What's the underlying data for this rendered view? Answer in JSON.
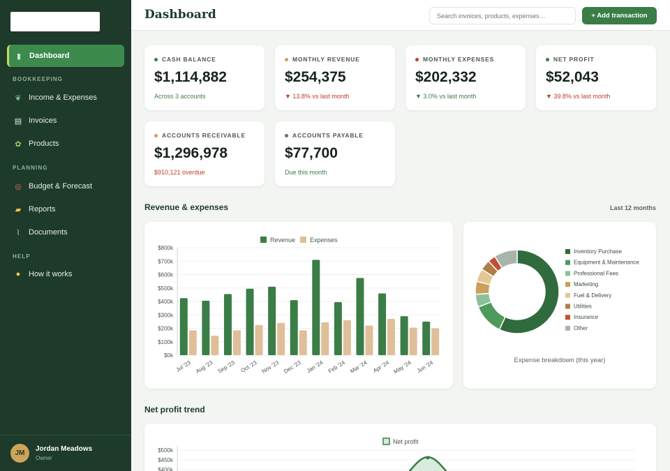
{
  "sidebar": {
    "nav": [
      {
        "label": "Dashboard",
        "icon": "chart-icon",
        "glyph": "▮"
      },
      {
        "label": "Income & Expenses",
        "icon": "leaf-icon",
        "glyph": "❦"
      },
      {
        "label": "Invoices",
        "icon": "receipt-icon",
        "glyph": "▤"
      },
      {
        "label": "Products",
        "icon": "sprout-icon",
        "glyph": "✿"
      },
      {
        "label": "Budget & Forecast",
        "icon": "target-icon",
        "glyph": "◎"
      },
      {
        "label": "Reports",
        "icon": "folder-icon",
        "glyph": "▰"
      },
      {
        "label": "Documents",
        "icon": "paperclip-icon",
        "glyph": "⌇"
      },
      {
        "label": "How it works",
        "icon": "lightbulb-icon",
        "glyph": "●"
      }
    ],
    "sections": {
      "bookkeeping": "BOOKKEEPING",
      "planning": "PLANNING",
      "help": "HELP"
    },
    "user": {
      "initials": "JM",
      "name": "Jordan Meadows",
      "role": "Owner"
    }
  },
  "header": {
    "title": "Dashboard",
    "search_placeholder": "Search invoices, products, expenses…",
    "add_label": "+ Add transaction"
  },
  "kpis": [
    {
      "label": "CASH BALANCE",
      "value": "$1,114,882",
      "sub": "Across 3 accounts",
      "dot": "#3a7d47",
      "trend": "pos"
    },
    {
      "label": "MONTHLY REVENUE",
      "value": "$254,375",
      "sub": "▼ 13.8% vs last month",
      "dot": "#c9a05a",
      "trend": "neg"
    },
    {
      "label": "MONTHLY EXPENSES",
      "value": "$202,332",
      "sub": "▼ 3.0% vs last month",
      "dot": "#c0392b",
      "trend": "pos"
    },
    {
      "label": "NET PROFIT",
      "value": "$52,043",
      "sub": "▼ 39.8% vs last month",
      "dot": "#3a7d47",
      "trend": "neg"
    },
    {
      "label": "ACCOUNTS RECEIVABLE",
      "value": "$1,296,978",
      "sub": "$910,121 overdue",
      "dot": "#c9a05a",
      "trend": "neg"
    },
    {
      "label": "ACCOUNTS PAYABLE",
      "value": "$77,700",
      "sub": "Due this month",
      "dot": "#6b6b6b",
      "trend": "pos"
    }
  ],
  "sections": {
    "revenue_title": "Revenue & expenses",
    "revenue_range": "Last 12 months",
    "net_title": "Net profit trend"
  },
  "chart_data": [
    {
      "type": "bar",
      "categories": [
        "Jul '23",
        "Aug '23",
        "Sep '23",
        "Oct '23",
        "Nov '23",
        "Dec '23",
        "Jan '24",
        "Feb '24",
        "Mar '24",
        "Apr '24",
        "May '24",
        "Jun '24"
      ],
      "series": [
        {
          "name": "Revenue",
          "color": "#3a7d47",
          "values": [
            425000,
            405000,
            455000,
            495000,
            510000,
            410000,
            710000,
            395000,
            575000,
            460000,
            290000,
            250000
          ]
        },
        {
          "name": "Expenses",
          "color": "#dfbf99",
          "values": [
            185000,
            145000,
            185000,
            225000,
            240000,
            185000,
            245000,
            260000,
            220000,
            270000,
            205000,
            200000
          ]
        }
      ],
      "yticks": [
        "$0k",
        "$100k",
        "$200k",
        "$300k",
        "$400k",
        "$500k",
        "$600k",
        "$700k",
        "$800k"
      ],
      "ylim": [
        0,
        800000
      ]
    },
    {
      "type": "pie",
      "caption": "Expense breakdown (this year)",
      "slices": [
        {
          "name": "Inventory Purchase",
          "value": 57,
          "color": "#2f6b3c"
        },
        {
          "name": "Equipment & Maintenance",
          "value": 12,
          "color": "#4e9a5c"
        },
        {
          "name": "Professional Fees",
          "value": 5,
          "color": "#8cc09a"
        },
        {
          "name": "Marketing",
          "value": 5,
          "color": "#c9a05a"
        },
        {
          "name": "Fuel & Delivery",
          "value": 5,
          "color": "#e3c896"
        },
        {
          "name": "Utilities",
          "value": 4,
          "color": "#b07d45"
        },
        {
          "name": "Insurance",
          "value": 3,
          "color": "#c0503a"
        },
        {
          "name": "Other",
          "value": 9,
          "color": "#a8b5aa"
        }
      ]
    },
    {
      "type": "line",
      "legend": "Net profit",
      "yticks": [
        "$500k",
        "$450k",
        "$400k"
      ]
    }
  ]
}
